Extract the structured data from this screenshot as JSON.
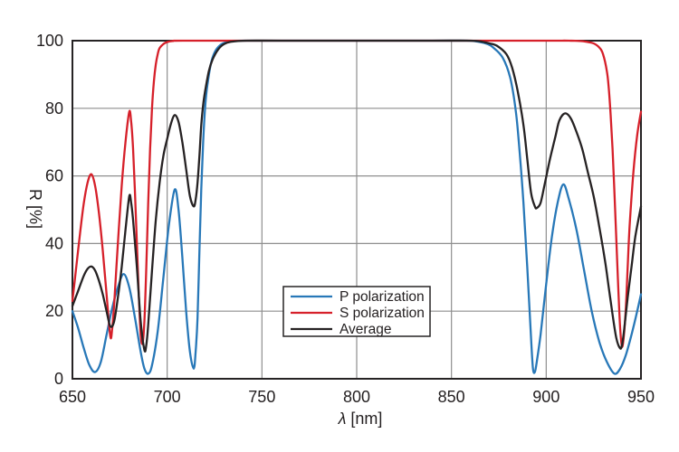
{
  "colors": {
    "background": "#ffffff",
    "grid": "#8e8e8e",
    "frame": "#262324",
    "text": "#231f20",
    "legend_border": "#262324",
    "p_polarization": "#2878b8",
    "s_polarization": "#d6202a",
    "average": "#262223"
  },
  "chart_data": {
    "type": "line",
    "xlabel": "λ [nm]",
    "xlabel_parts": {
      "lambda": "λ",
      "unit": " [nm]"
    },
    "ylabel": "R [%]",
    "legend_position": "inside-bottom-center",
    "grid": "on",
    "x_axis": {
      "min": 650,
      "max": 950,
      "ticks": [
        650,
        700,
        750,
        800,
        850,
        900,
        950
      ],
      "gridlines": [
        700,
        750,
        800,
        850,
        900
      ]
    },
    "y_axis": {
      "min": 0,
      "max": 100,
      "ticks": [
        0,
        20,
        40,
        60,
        80,
        100
      ],
      "gridlines": [
        20,
        40,
        60,
        80
      ]
    },
    "series": [
      {
        "name": "P polarization",
        "key": "p-polarization",
        "color": "#2878b8",
        "points": [
          [
            650,
            20
          ],
          [
            653,
            15
          ],
          [
            656,
            9
          ],
          [
            659,
            4
          ],
          [
            662,
            2
          ],
          [
            665,
            5
          ],
          [
            668,
            13
          ],
          [
            671,
            21
          ],
          [
            674,
            27
          ],
          [
            677,
            31
          ],
          [
            680,
            27
          ],
          [
            683,
            18
          ],
          [
            686,
            8
          ],
          [
            688,
            3
          ],
          [
            690,
            1.5
          ],
          [
            692,
            4
          ],
          [
            695,
            14
          ],
          [
            698,
            30
          ],
          [
            701,
            46
          ],
          [
            704,
            56
          ],
          [
            706,
            50
          ],
          [
            708,
            36
          ],
          [
            710,
            20
          ],
          [
            712,
            8
          ],
          [
            714,
            3
          ],
          [
            715,
            8
          ],
          [
            716,
            18
          ],
          [
            717,
            38
          ],
          [
            718,
            56
          ],
          [
            719,
            70
          ],
          [
            720,
            80
          ],
          [
            721,
            86
          ],
          [
            723,
            93
          ],
          [
            725,
            96.5
          ],
          [
            728,
            98.7
          ],
          [
            731,
            99.5
          ],
          [
            735,
            99.9
          ],
          [
            742,
            100
          ],
          [
            760,
            100
          ],
          [
            800,
            100
          ],
          [
            840,
            100
          ],
          [
            858,
            100
          ],
          [
            864,
            99.7
          ],
          [
            869,
            99
          ],
          [
            872,
            98
          ],
          [
            877,
            95
          ],
          [
            881,
            89
          ],
          [
            884,
            79
          ],
          [
            886,
            67
          ],
          [
            888,
            52
          ],
          [
            890,
            33
          ],
          [
            892,
            12
          ],
          [
            893,
            3
          ],
          [
            894,
            2
          ],
          [
            895,
            5
          ],
          [
            897,
            13
          ],
          [
            900,
            28
          ],
          [
            903,
            42
          ],
          [
            906,
            52
          ],
          [
            909,
            57.5
          ],
          [
            912,
            53
          ],
          [
            916,
            44
          ],
          [
            920,
            32
          ],
          [
            924,
            20
          ],
          [
            928,
            11
          ],
          [
            932,
            5
          ],
          [
            936,
            1.5
          ],
          [
            939,
            3
          ],
          [
            942,
            7
          ],
          [
            945,
            13
          ],
          [
            948,
            20
          ],
          [
            950,
            25
          ]
        ]
      },
      {
        "name": "S polarization",
        "key": "s-polarization",
        "color": "#d6202a",
        "points": [
          [
            650,
            23
          ],
          [
            652,
            33
          ],
          [
            654,
            43
          ],
          [
            656,
            52
          ],
          [
            658,
            58
          ],
          [
            660,
            60.5
          ],
          [
            662,
            57
          ],
          [
            664,
            49
          ],
          [
            666,
            38
          ],
          [
            668,
            25
          ],
          [
            670,
            12.5
          ],
          [
            671,
            15
          ],
          [
            672,
            22
          ],
          [
            674,
            40
          ],
          [
            676,
            57
          ],
          [
            678,
            70
          ],
          [
            680,
            79
          ],
          [
            681,
            76
          ],
          [
            682,
            68
          ],
          [
            683,
            55
          ],
          [
            684,
            40
          ],
          [
            685,
            25
          ],
          [
            686,
            13
          ],
          [
            687,
            10.5
          ],
          [
            688,
            17
          ],
          [
            689,
            33
          ],
          [
            690,
            52
          ],
          [
            691,
            68
          ],
          [
            692,
            80
          ],
          [
            693,
            88
          ],
          [
            694,
            93
          ],
          [
            695,
            96
          ],
          [
            696,
            97.8
          ],
          [
            698,
            99
          ],
          [
            700,
            99.6
          ],
          [
            703,
            99.9
          ],
          [
            708,
            100
          ],
          [
            750,
            100
          ],
          [
            800,
            100
          ],
          [
            850,
            100
          ],
          [
            900,
            100
          ],
          [
            912,
            100
          ],
          [
            918,
            99.9
          ],
          [
            922,
            99.6
          ],
          [
            925,
            99.2
          ],
          [
            928,
            98
          ],
          [
            930,
            96
          ],
          [
            932,
            91
          ],
          [
            933,
            86
          ],
          [
            934,
            78
          ],
          [
            935,
            68
          ],
          [
            936,
            55
          ],
          [
            937,
            41
          ],
          [
            938,
            27
          ],
          [
            939,
            15
          ],
          [
            940,
            9.5
          ],
          [
            941,
            13
          ],
          [
            942,
            21
          ],
          [
            943,
            33
          ],
          [
            944,
            45
          ],
          [
            946,
            61
          ],
          [
            948,
            72
          ],
          [
            950,
            79
          ]
        ]
      },
      {
        "name": "Average",
        "key": "average",
        "color": "#262223",
        "points": [
          [
            650,
            21.5
          ],
          [
            653,
            26
          ],
          [
            656,
            30.5
          ],
          [
            658,
            32.5
          ],
          [
            660,
            33.2
          ],
          [
            662,
            32
          ],
          [
            664,
            29
          ],
          [
            666,
            25
          ],
          [
            668,
            20
          ],
          [
            670,
            15.5
          ],
          [
            672,
            17
          ],
          [
            674,
            24
          ],
          [
            676,
            33
          ],
          [
            678,
            44
          ],
          [
            680,
            54
          ],
          [
            681,
            52
          ],
          [
            682,
            47
          ],
          [
            684,
            33
          ],
          [
            686,
            17
          ],
          [
            688,
            8.5
          ],
          [
            689,
            10
          ],
          [
            690,
            16
          ],
          [
            692,
            32
          ],
          [
            694,
            47
          ],
          [
            696,
            58
          ],
          [
            698,
            66
          ],
          [
            700,
            71
          ],
          [
            702,
            75.5
          ],
          [
            704,
            78
          ],
          [
            706,
            76
          ],
          [
            708,
            70
          ],
          [
            710,
            62
          ],
          [
            712,
            54
          ],
          [
            714,
            51
          ],
          [
            715,
            53
          ],
          [
            716,
            58
          ],
          [
            717,
            66
          ],
          [
            718,
            75
          ],
          [
            719,
            81
          ],
          [
            720,
            85
          ],
          [
            722,
            91
          ],
          [
            724,
            94.5
          ],
          [
            727,
            97.5
          ],
          [
            730,
            99
          ],
          [
            734,
            99.7
          ],
          [
            742,
            100
          ],
          [
            760,
            100
          ],
          [
            800,
            100
          ],
          [
            840,
            100
          ],
          [
            860,
            100
          ],
          [
            866,
            99.7
          ],
          [
            870,
            99.2
          ],
          [
            874,
            98.5
          ],
          [
            879,
            96
          ],
          [
            882,
            92
          ],
          [
            885,
            85
          ],
          [
            888,
            75
          ],
          [
            890,
            65
          ],
          [
            892,
            55
          ],
          [
            894,
            51
          ],
          [
            895,
            50.5
          ],
          [
            897,
            52
          ],
          [
            899,
            57
          ],
          [
            902,
            65
          ],
          [
            905,
            72
          ],
          [
            907,
            76.5
          ],
          [
            910,
            78.5
          ],
          [
            913,
            77
          ],
          [
            916,
            73
          ],
          [
            919,
            68
          ],
          [
            922,
            61
          ],
          [
            925,
            54
          ],
          [
            928,
            45
          ],
          [
            931,
            35
          ],
          [
            933,
            27
          ],
          [
            935,
            19
          ],
          [
            937,
            12
          ],
          [
            939,
            9
          ],
          [
            940,
            10
          ],
          [
            941,
            14
          ],
          [
            943,
            24
          ],
          [
            945,
            33
          ],
          [
            947,
            42
          ],
          [
            950,
            51
          ]
        ]
      }
    ]
  }
}
